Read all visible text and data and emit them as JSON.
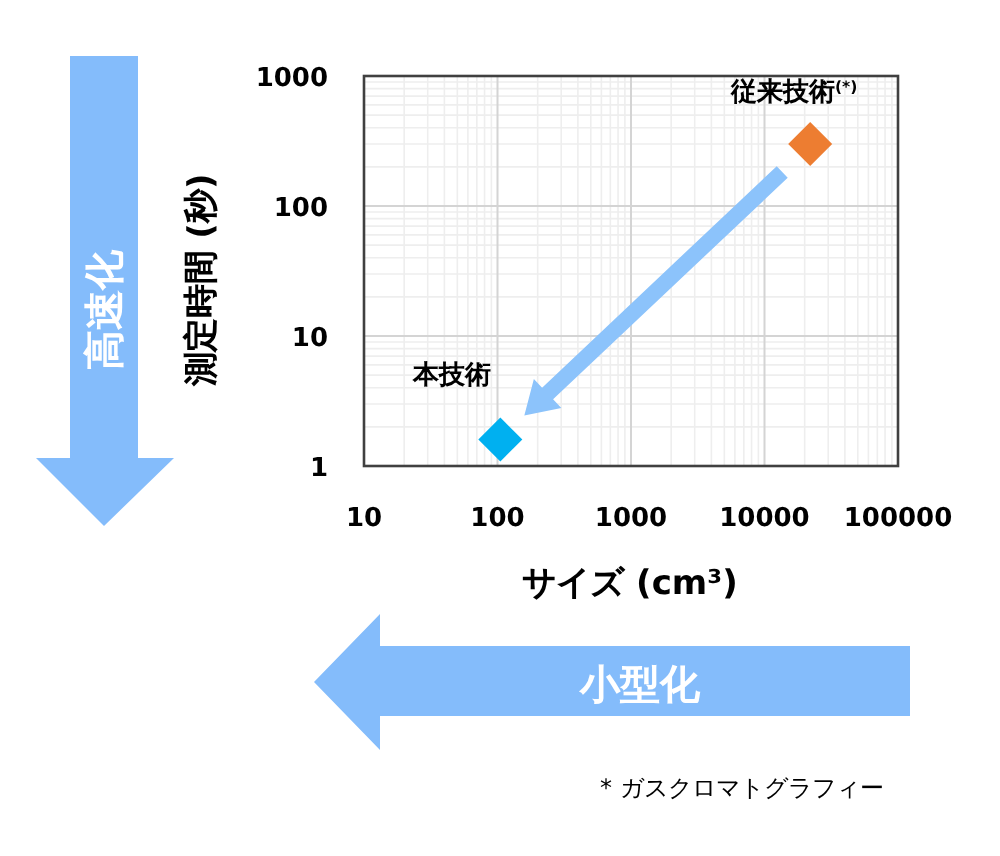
{
  "chart_data": {
    "type": "scatter",
    "xlabel": "サイズ (cm³)",
    "ylabel": "測定時間 (秒)",
    "log": "xy",
    "xlim": [
      10,
      100000
    ],
    "ylim": [
      1,
      1000
    ],
    "xticks": [
      10,
      100,
      1000,
      10000,
      100000
    ],
    "yticks": [
      1,
      10,
      100,
      1000
    ],
    "grid": true,
    "marker": "diamond",
    "series": [
      {
        "name": "本技術",
        "color": "#00b0f0",
        "x": [
          105
        ],
        "values": [
          1.6
        ]
      },
      {
        "name": "従来技術$^{(*)}$",
        "color": "#ed7d31",
        "x": [
          22000
        ],
        "values": [
          300
        ]
      }
    ],
    "annotations": [
      "高速化",
      "小型化",
      "* ガスクロマトグラフィー"
    ]
  }
}
